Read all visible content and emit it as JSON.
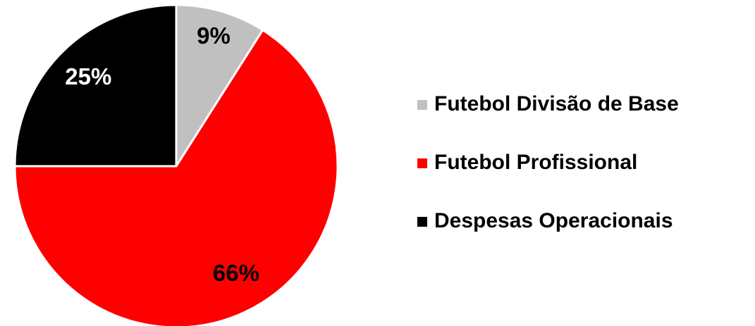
{
  "chart_data": {
    "type": "pie",
    "categories": [
      "Futebol Divisão de Base",
      "Futebol Profissional",
      "Despesas Operacionais"
    ],
    "values": [
      9,
      66,
      25
    ],
    "value_labels": [
      "9%",
      "66%",
      "25%"
    ],
    "colors": [
      "#c0c0c0",
      "#ff0000",
      "#000000"
    ],
    "legend": "right"
  }
}
